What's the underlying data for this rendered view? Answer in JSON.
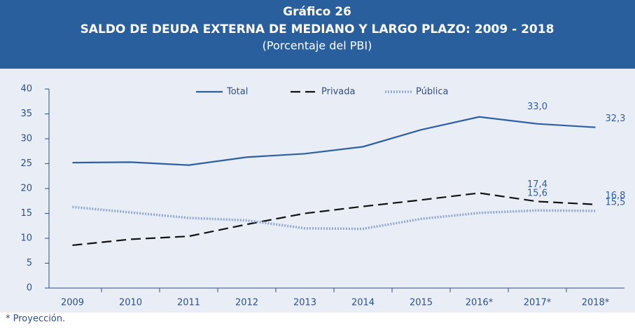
{
  "chart_data": {
    "type": "line",
    "title": "Gráfico 26",
    "subtitle": "SALDO DE DEUDA EXTERNA DE MEDIANO Y LARGO PLAZO: 2009 - 2018",
    "unit_label": "(Porcentaje del PBI)",
    "footnote": "* Proyección.",
    "categories": [
      "2009",
      "2010",
      "2011",
      "2012",
      "2013",
      "2014",
      "2015",
      "2016*",
      "2017*",
      "2018*"
    ],
    "series": [
      {
        "name": "Total",
        "color": "#2e5fa3",
        "style": "solid",
        "values": [
          25.2,
          25.3,
          24.7,
          26.3,
          27.0,
          28.4,
          31.8,
          34.4,
          33.0,
          32.3
        ],
        "value_labels": [
          null,
          null,
          null,
          null,
          null,
          null,
          null,
          null,
          "33,0",
          "32,3"
        ]
      },
      {
        "name": "Privada",
        "color": "#111111",
        "style": "dashed",
        "values": [
          8.6,
          9.8,
          10.4,
          12.8,
          15.0,
          16.4,
          17.7,
          19.1,
          17.4,
          16.8
        ],
        "value_labels": [
          null,
          null,
          null,
          null,
          null,
          null,
          null,
          null,
          "17,4",
          "16,8"
        ]
      },
      {
        "name": "Pública",
        "color": "#8fa6cf",
        "style": "dotted",
        "values": [
          16.3,
          15.2,
          14.1,
          13.6,
          12.0,
          11.9,
          13.9,
          15.1,
          15.6,
          15.5
        ],
        "value_labels": [
          null,
          null,
          null,
          null,
          null,
          null,
          null,
          null,
          "15,6",
          "15,5"
        ]
      }
    ],
    "ylim": [
      0,
      40
    ],
    "yticks": [
      0,
      5,
      10,
      15,
      20,
      25,
      30,
      35,
      40
    ],
    "grid": false,
    "legend": "top"
  }
}
